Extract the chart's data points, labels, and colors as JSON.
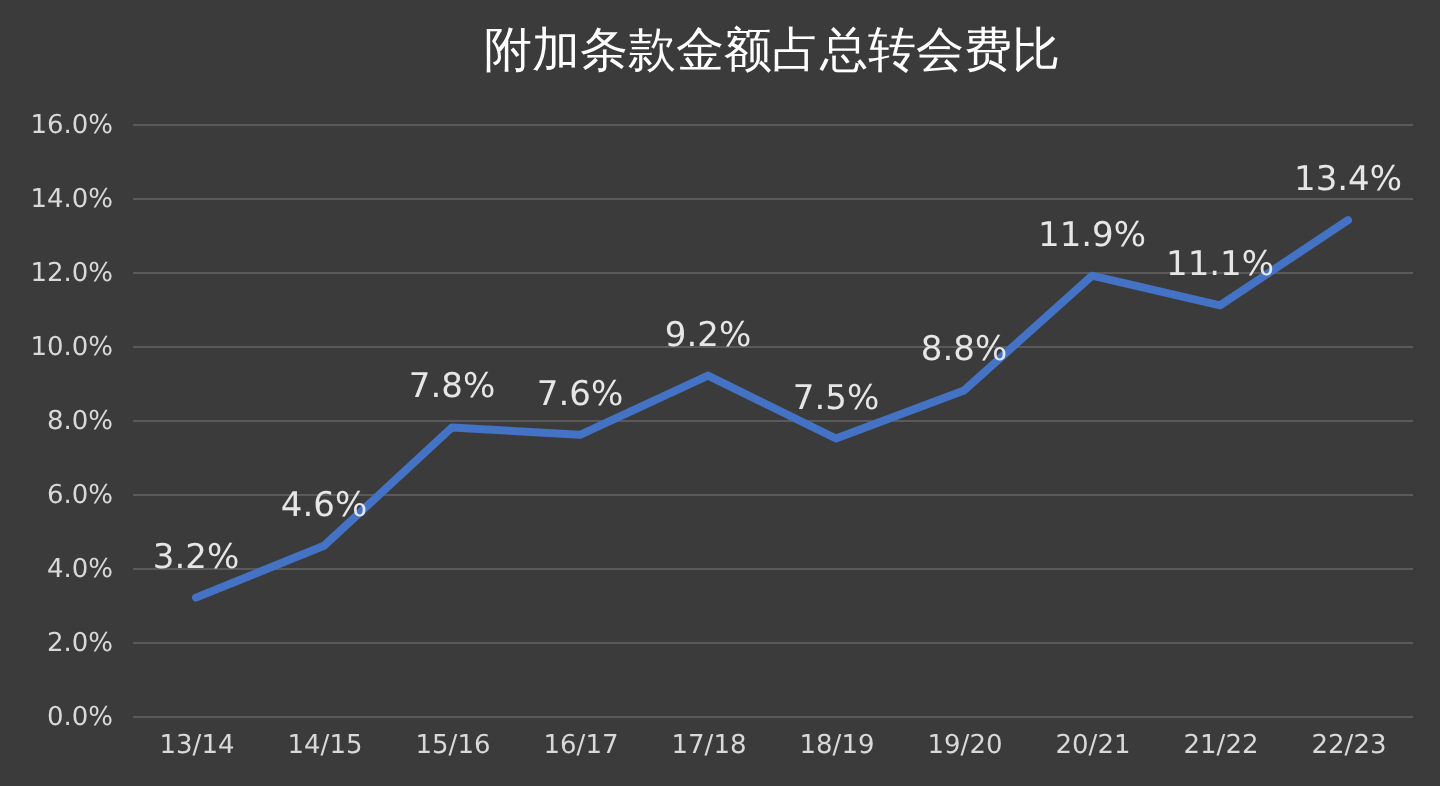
{
  "chart_data": {
    "type": "line",
    "title": "附加条款金额占总转会费比",
    "categories": [
      "13/14",
      "14/15",
      "15/16",
      "16/17",
      "17/18",
      "18/19",
      "19/20",
      "20/21",
      "21/22",
      "22/23"
    ],
    "series": [
      {
        "color": "#4472c4",
        "values": [
          3.2,
          4.6,
          7.8,
          7.6,
          9.2,
          7.5,
          8.8,
          11.9,
          11.1,
          13.4
        ],
        "value_labels": [
          "3.2%",
          "4.6%",
          "7.8%",
          "7.6%",
          "9.2%",
          "7.5%",
          "8.8%",
          "11.9%",
          "11.1%",
          "13.4%"
        ]
      }
    ],
    "ylim": [
      0,
      16
    ],
    "yticks": [
      {
        "value": 0,
        "label": "0.0%"
      },
      {
        "value": 2,
        "label": "2.0%"
      },
      {
        "value": 4,
        "label": "4.0%"
      },
      {
        "value": 6,
        "label": "6.0%"
      },
      {
        "value": 8,
        "label": "8.0%"
      },
      {
        "value": 10,
        "label": "10.0%"
      },
      {
        "value": 12,
        "label": "12.0%"
      },
      {
        "value": 14,
        "label": "14.0%"
      },
      {
        "value": 16,
        "label": "16.0%"
      }
    ],
    "grid": "y",
    "line_style": "solid"
  }
}
